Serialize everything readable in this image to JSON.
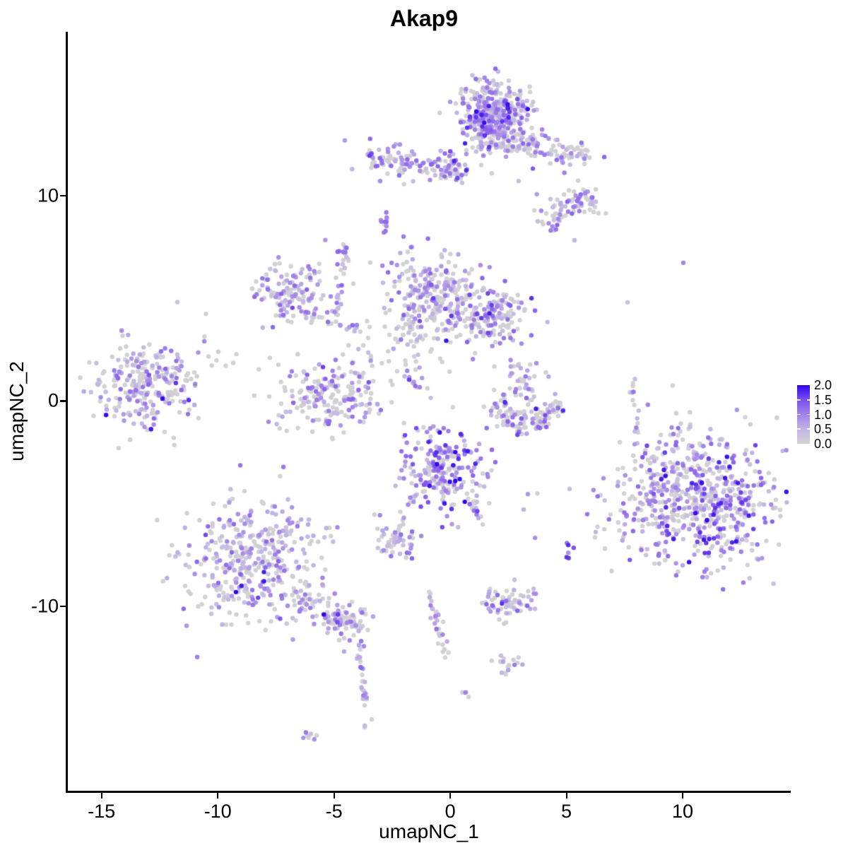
{
  "title": "Akap9",
  "axes": {
    "x_title": "umapNC_1",
    "y_title": "umapNC_2"
  },
  "chart_data": {
    "type": "scatter",
    "title": "Akap9",
    "xlabel": "umapNC_1",
    "ylabel": "umapNC_2",
    "xlim": [
      -16.48,
      14.62
    ],
    "ylim": [
      -19.0,
      18.0
    ],
    "x_ticks": [
      {
        "value": -15,
        "label": "-15"
      },
      {
        "value": -10,
        "label": "-10"
      },
      {
        "value": -5,
        "label": "-5"
      },
      {
        "value": 0,
        "label": "0"
      },
      {
        "value": 5,
        "label": "5"
      },
      {
        "value": 10,
        "label": "10"
      }
    ],
    "y_ticks": [
      {
        "value": 10,
        "label": "10"
      },
      {
        "value": 0,
        "label": "0"
      },
      {
        "value": -10,
        "label": "-10"
      }
    ],
    "grid": false,
    "point_radius_px": 3.2,
    "color_scale": {
      "low_color": "#d3d3d3",
      "high_color": "#2d06f0",
      "stops": [
        [
          0,
          "#d3d3d3"
        ],
        [
          0.25,
          "#c2b5e6"
        ],
        [
          0.5,
          "#a283e8"
        ],
        [
          0.75,
          "#7a4fee"
        ],
        [
          1,
          "#2d06f0"
        ]
      ],
      "domain": [
        0.0,
        2.0
      ]
    },
    "legend": {
      "position": "right",
      "ticks": [
        {
          "value": 2.0,
          "label": "2.0"
        },
        {
          "value": 1.5,
          "label": "1.5"
        },
        {
          "value": 1.0,
          "label": "1.0"
        },
        {
          "value": 0.5,
          "label": "0.5"
        },
        {
          "value": 0.0,
          "label": "0.0"
        }
      ]
    },
    "clusters": [
      {
        "name": "top-main",
        "type": "gauss",
        "x": 1.9,
        "y": 13.9,
        "sx": 0.75,
        "sy": 0.92,
        "n": 430,
        "mix": [
          0.45,
          0.2,
          0.3,
          0.05
        ]
      },
      {
        "name": "top-arm",
        "type": "line",
        "x1": 1.9,
        "y1": 12.8,
        "x2": 5.96,
        "y2": 11.9,
        "w": 0.3,
        "n": 110,
        "mix": [
          0.5,
          0.2,
          0.27,
          0.03
        ]
      },
      {
        "name": "arm-blob-a",
        "type": "gauss",
        "x": 5.74,
        "y": 9.73,
        "sx": 0.42,
        "sy": 0.5,
        "n": 40,
        "mix": [
          0.45,
          0.2,
          0.3,
          0.05
        ]
      },
      {
        "name": "arm-blob-b",
        "type": "gauss",
        "x": 4.53,
        "y": 9.04,
        "sx": 0.42,
        "sy": 0.5,
        "n": 40,
        "mix": [
          0.5,
          0.25,
          0.25,
          0
        ]
      },
      {
        "name": "top-left-arm",
        "type": "line",
        "x1": -3.34,
        "y1": 11.86,
        "x2": 0.55,
        "y2": 11.2,
        "w": 0.38,
        "n": 145,
        "mix": [
          0.4,
          0.2,
          0.35,
          0.05
        ]
      },
      {
        "name": "tiny-clump-a",
        "type": "gauss",
        "x": -2.8,
        "y": 8.66,
        "sx": 0.12,
        "sy": 0.3,
        "n": 10,
        "mix": [
          0.3,
          0.2,
          0.5,
          0
        ]
      },
      {
        "name": "tiny-clump-b",
        "type": "gauss",
        "x": -4.59,
        "y": 7.25,
        "sx": 0.18,
        "sy": 0.3,
        "n": 13,
        "mix": [
          0.35,
          0.25,
          0.35,
          0.05
        ]
      },
      {
        "name": "mid-left-ring",
        "type": "gauss",
        "x": -6.96,
        "y": 5.43,
        "sx": 0.8,
        "sy": 0.75,
        "n": 128,
        "mix": [
          0.45,
          0.25,
          0.28,
          0.02
        ]
      },
      {
        "name": "strand-vertical",
        "type": "line",
        "x1": -4.56,
        "y1": 7.53,
        "x2": -4.98,
        "y2": 3.95,
        "w": 0.1,
        "n": 24,
        "mix": [
          0.4,
          0.3,
          0.3,
          0
        ]
      },
      {
        "name": "chain",
        "type": "line",
        "x1": -6.23,
        "y1": 4.19,
        "x2": -3.68,
        "y2": 3.51,
        "w": 0.16,
        "n": 26,
        "mix": [
          0.55,
          0.25,
          0.2,
          0
        ]
      },
      {
        "name": "center-main",
        "type": "gauss",
        "x": -0.73,
        "y": 5.15,
        "sx": 1.05,
        "sy": 1.08,
        "n": 270,
        "mix": [
          0.45,
          0.25,
          0.27,
          0.03
        ]
      },
      {
        "name": "center-right-blob",
        "type": "gauss",
        "x": 1.82,
        "y": 4.06,
        "sx": 0.8,
        "sy": 0.68,
        "n": 140,
        "mix": [
          0.4,
          0.2,
          0.32,
          0.08
        ]
      },
      {
        "name": "center-sparse-grey",
        "type": "gauss",
        "x": -2.19,
        "y": 2.61,
        "sx": 1.0,
        "sy": 1.1,
        "n": 55,
        "mix": [
          0.82,
          0.12,
          0.06,
          0
        ]
      },
      {
        "name": "mid-bottom-u",
        "type": "gauss",
        "x": -5.14,
        "y": 0.34,
        "sx": 1.15,
        "sy": 0.85,
        "n": 195,
        "mix": [
          0.55,
          0.2,
          0.23,
          0.02
        ]
      },
      {
        "name": "blue-streak",
        "type": "line",
        "x1": -1.82,
        "y1": 1.24,
        "x2": -1.19,
        "y2": 0.48,
        "w": 0.08,
        "n": 9,
        "mix": [
          0,
          0.2,
          0.6,
          0.2
        ]
      },
      {
        "name": "left-cluster",
        "type": "gauss",
        "x": -13.13,
        "y": 0.69,
        "sx": 1.12,
        "sy": 1.05,
        "n": 255,
        "mix": [
          0.5,
          0.22,
          0.26,
          0.02
        ]
      },
      {
        "name": "left-sparse",
        "type": "gauss",
        "x": -9.33,
        "y": 1.82,
        "sx": 0.9,
        "sy": 0.8,
        "n": 13,
        "mix": [
          0.8,
          0.1,
          0.1,
          0
        ]
      },
      {
        "name": "crescent-left",
        "type": "line",
        "x1": 1.9,
        "y1": -0.24,
        "x2": 3.28,
        "y2": -1.27,
        "w": 0.28,
        "n": 62,
        "mix": [
          0.7,
          0.12,
          0.14,
          0.04
        ]
      },
      {
        "name": "crescent-right",
        "type": "line",
        "x1": 3.28,
        "y1": -1.27,
        "x2": 4.65,
        "y2": -0.14,
        "w": 0.28,
        "n": 62,
        "mix": [
          0.66,
          0.12,
          0.17,
          0.05
        ]
      },
      {
        "name": "crescent-upper-clump",
        "type": "gauss",
        "x": 3.13,
        "y": 0.79,
        "sx": 0.45,
        "sy": 0.55,
        "n": 45,
        "mix": [
          0.5,
          0.2,
          0.27,
          0.03
        ]
      },
      {
        "name": "right-strand",
        "type": "line",
        "x1": 7.84,
        "y1": 0.89,
        "x2": 8.05,
        "y2": -1.79,
        "w": 0.08,
        "n": 16,
        "mix": [
          0.45,
          0.3,
          0.25,
          0
        ]
      },
      {
        "name": "center-bottom",
        "type": "gauss",
        "x": -0.35,
        "y": -3.45,
        "sx": 0.92,
        "sy": 0.98,
        "n": 215,
        "mix": [
          0.3,
          0.2,
          0.37,
          0.13
        ]
      },
      {
        "name": "center-bottom-trail",
        "type": "line",
        "x1": -1.58,
        "y1": -4.54,
        "x2": -2.19,
        "y2": -6.08,
        "w": 0.12,
        "n": 12,
        "mix": [
          0.4,
          0.3,
          0.3,
          0
        ]
      },
      {
        "name": "center-bottom-arm",
        "type": "line",
        "x1": 0.85,
        "y1": -4.54,
        "x2": 1.31,
        "y2": -5.91,
        "w": 0.12,
        "n": 14,
        "mix": [
          0.4,
          0.25,
          0.3,
          0.05
        ]
      },
      {
        "name": "small-blob-bottom-center",
        "type": "gauss",
        "x": -2.43,
        "y": -6.87,
        "sx": 0.5,
        "sy": 0.45,
        "n": 50,
        "mix": [
          0.42,
          0.3,
          0.28,
          0
        ]
      },
      {
        "name": "deep-blue-clump",
        "type": "gauss",
        "x": 5.11,
        "y": -7.42,
        "sx": 0.12,
        "sy": 0.24,
        "n": 6,
        "mix": [
          0,
          0,
          0.15,
          0.85
        ]
      },
      {
        "name": "bottom-left-main",
        "type": "gauss",
        "x": -8.57,
        "y": -7.73,
        "sx": 1.45,
        "sy": 1.42,
        "n": 400,
        "mix": [
          0.5,
          0.25,
          0.23,
          0.02
        ]
      },
      {
        "name": "bottom-left-tail",
        "type": "line",
        "x1": -6.66,
        "y1": -9.55,
        "x2": -4.16,
        "y2": -10.86,
        "w": 0.35,
        "n": 70,
        "mix": [
          0.5,
          0.25,
          0.23,
          0.02
        ]
      },
      {
        "name": "tail-blob",
        "type": "gauss",
        "x": -4.41,
        "y": -10.72,
        "sx": 0.55,
        "sy": 0.4,
        "n": 45,
        "mix": [
          0.45,
          0.25,
          0.27,
          0.03
        ]
      },
      {
        "name": "strand-down",
        "type": "line",
        "x1": -3.98,
        "y1": -11.51,
        "x2": -3.53,
        "y2": -15.95,
        "w": 0.1,
        "n": 30,
        "mix": [
          0.4,
          0.35,
          0.25,
          0
        ]
      },
      {
        "name": "tiny-blob-bottom",
        "type": "gauss",
        "x": -6.05,
        "y": -16.36,
        "sx": 0.22,
        "sy": 0.12,
        "n": 7,
        "mix": [
          0.2,
          0.5,
          0.3,
          0
        ]
      },
      {
        "name": "mid-strand",
        "type": "line",
        "x1": -0.91,
        "y1": -9.35,
        "x2": -0.18,
        "y2": -12.34,
        "w": 0.12,
        "n": 32,
        "mix": [
          0.5,
          0.25,
          0.25,
          0
        ]
      },
      {
        "name": "dot-pair",
        "type": "gauss",
        "x": 0.61,
        "y": -14.16,
        "sx": 0.1,
        "sy": 0.15,
        "n": 4,
        "mix": [
          0.3,
          0.3,
          0.4,
          0
        ]
      },
      {
        "name": "small-cluster-right",
        "type": "gauss",
        "x": 2.4,
        "y": -9.86,
        "sx": 0.6,
        "sy": 0.38,
        "n": 65,
        "mix": [
          0.45,
          0.25,
          0.28,
          0.02
        ]
      },
      {
        "name": "small-cluster-right-lower",
        "type": "gauss",
        "x": 2.43,
        "y": -12.82,
        "sx": 0.3,
        "sy": 0.35,
        "n": 18,
        "mix": [
          0.4,
          0.3,
          0.3,
          0
        ]
      },
      {
        "name": "big-right-cluster",
        "type": "gauss",
        "x": 10.58,
        "y": -4.64,
        "sx": 1.72,
        "sy": 1.58,
        "n": 660,
        "mix": [
          0.42,
          0.2,
          0.3,
          0.08
        ]
      }
    ],
    "singles": [
      {
        "x": 10.03,
        "y": 6.74,
        "v": 1.0
      },
      {
        "x": 7.63,
        "y": 4.81,
        "v": 0.3
      },
      {
        "x": 9.57,
        "y": 0.76,
        "v": 0.0
      },
      {
        "x": 3.34,
        "y": -4.54,
        "v": 0.8
      },
      {
        "x": 3.16,
        "y": -5.29,
        "v": 0.5
      },
      {
        "x": 3.65,
        "y": -6.67,
        "v": 0.9
      },
      {
        "x": 8.05,
        "y": -2.06,
        "v": 0.4
      },
      {
        "x": -2.75,
        "y": 9.2,
        "v": 1.1
      }
    ]
  }
}
